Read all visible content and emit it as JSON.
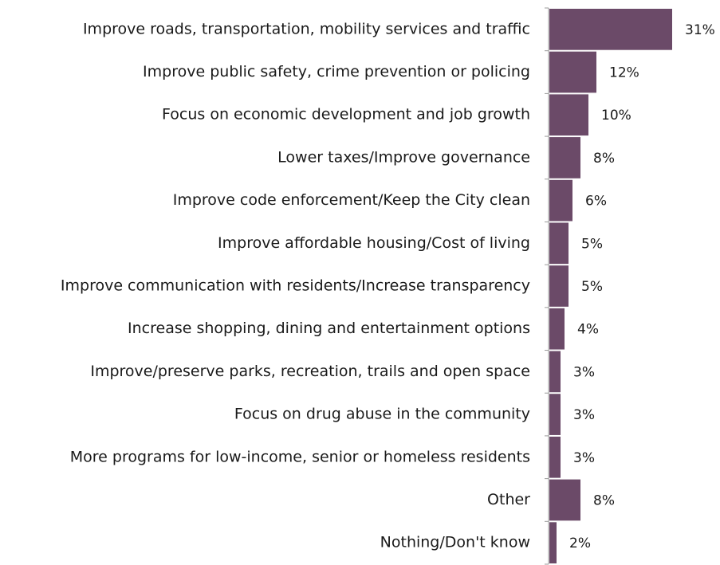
{
  "chart_data": {
    "type": "bar",
    "orientation": "horizontal",
    "categories": [
      "Improve roads, transportation, mobility services and traffic",
      "Improve public safety, crime prevention or policing",
      "Focus on economic development and job growth",
      "Lower taxes/Improve governance",
      "Improve code enforcement/Keep the City clean",
      "Improve affordable housing/Cost of living",
      "Improve communication with residents/Increase transparency",
      "Increase shopping, dining and entertainment options",
      "Improve/preserve parks, recreation, trails and open space",
      "Focus on drug abuse in the community",
      "More programs for low-income, senior or homeless residents",
      "Other",
      "Nothing/Don't know"
    ],
    "values": [
      31,
      12,
      10,
      8,
      6,
      5,
      5,
      4,
      3,
      3,
      3,
      8,
      2
    ],
    "value_labels": [
      "31%",
      "12%",
      "10%",
      "8%",
      "6%",
      "5%",
      "5%",
      "4%",
      "3%",
      "3%",
      "3%",
      "8%",
      "2%"
    ],
    "color": "#6b4a68"
  }
}
